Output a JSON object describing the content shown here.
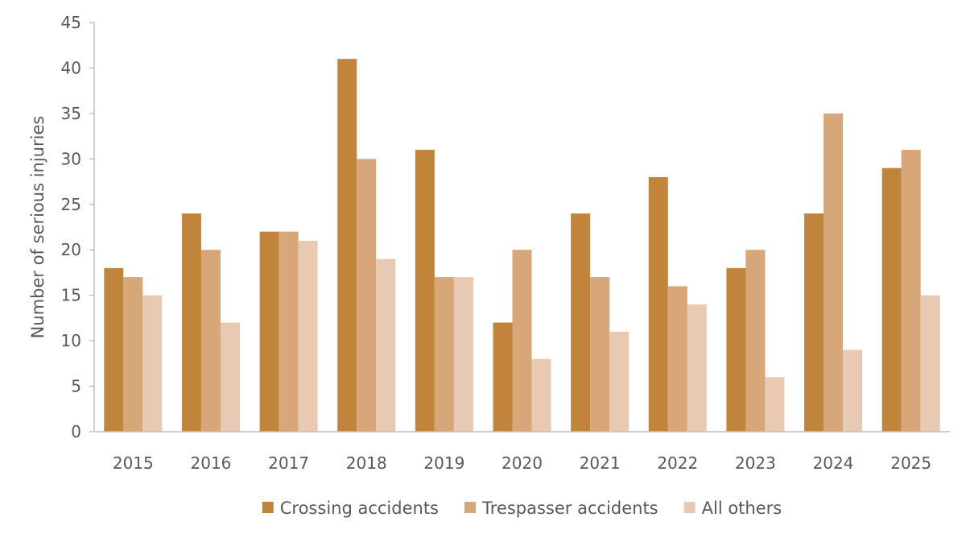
{
  "chart_data": {
    "type": "bar",
    "ylabel": "Number of serious injuries",
    "ylim": [
      0,
      45
    ],
    "yticks": [
      0,
      5,
      10,
      15,
      20,
      25,
      30,
      35,
      40,
      45
    ],
    "grid": false,
    "legend_position": "bottom",
    "categories": [
      "2015",
      "2016",
      "2017",
      "2018",
      "2019",
      "2020",
      "2021",
      "2022",
      "2023",
      "2024",
      "2025"
    ],
    "series": [
      {
        "name": "Crossing accidents",
        "color": "#c0853a",
        "values": [
          18,
          24,
          22,
          41,
          31,
          12,
          24,
          28,
          18,
          24,
          29
        ]
      },
      {
        "name": "Trespasser accidents",
        "color": "#d7a679",
        "values": [
          17,
          20,
          22,
          30,
          17,
          20,
          17,
          16,
          20,
          35,
          31
        ]
      },
      {
        "name": "All others",
        "color": "#e8cab2",
        "values": [
          15,
          12,
          21,
          19,
          17,
          8,
          11,
          14,
          6,
          9,
          15
        ]
      }
    ]
  }
}
